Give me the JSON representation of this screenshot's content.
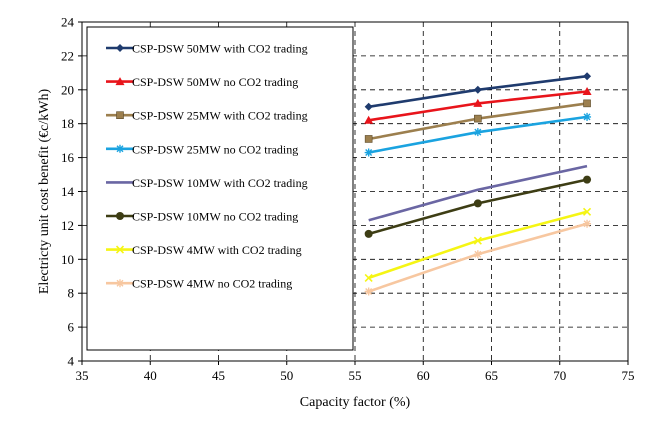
{
  "chart_data": {
    "type": "line",
    "title": "",
    "xlabel": "Capacity factor (%)",
    "ylabel": "Electricty unit cost benefit (€c/kWh)",
    "xlim": [
      35,
      75
    ],
    "ylim": [
      4,
      24
    ],
    "xticks": [
      35,
      40,
      45,
      50,
      55,
      60,
      65,
      70,
      75
    ],
    "yticks": [
      4,
      6,
      8,
      10,
      12,
      14,
      16,
      18,
      20,
      22,
      24
    ],
    "grid": "dashed",
    "legend_position": "left",
    "x": [
      56,
      64,
      72
    ],
    "series": [
      {
        "name": "CSP-DSW 50MW with CO2 trading",
        "values": [
          19.0,
          20.0,
          20.8
        ],
        "color": "#1f3b6e",
        "marker": "diamond"
      },
      {
        "name": "CSP-DSW 50MW no CO2 trading",
        "values": [
          18.2,
          19.2,
          19.9
        ],
        "color": "#e8141b",
        "marker": "triangle"
      },
      {
        "name": "CSP-DSW 25MW with CO2 trading",
        "values": [
          17.1,
          18.3,
          19.2
        ],
        "color": "#9c7f4e",
        "marker": "square"
      },
      {
        "name": "CSP-DSW 25MW no CO2 trading",
        "values": [
          16.3,
          17.5,
          18.4
        ],
        "color": "#1aa3e0",
        "marker": "star"
      },
      {
        "name": "CSP-DSW 10MW with CO2 trading",
        "values": [
          12.3,
          14.1,
          15.5
        ],
        "color": "#6a66a3",
        "marker": "none"
      },
      {
        "name": "CSP-DSW 10MW no CO2 trading",
        "values": [
          11.5,
          13.3,
          14.7
        ],
        "color": "#3d3d14",
        "marker": "circle"
      },
      {
        "name": "CSP-DSW 4MW with CO2 trading",
        "values": [
          8.9,
          11.1,
          12.8
        ],
        "color": "#f5f514",
        "marker": "x"
      },
      {
        "name": "CSP-DSW 4MW no CO2 trading",
        "values": [
          8.1,
          10.3,
          12.1
        ],
        "color": "#f7c7a0",
        "marker": "star"
      }
    ]
  }
}
